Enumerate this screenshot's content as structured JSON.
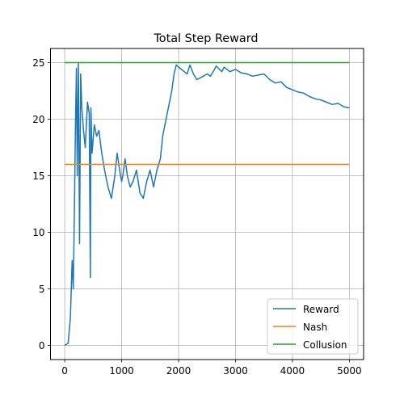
{
  "chart_data": {
    "type": "line",
    "title": "Total Step Reward",
    "xlabel": "",
    "ylabel": "",
    "xlim": [
      -250,
      5250
    ],
    "ylim": [
      -1.25,
      26.25
    ],
    "xticks": [
      0,
      1000,
      2000,
      3000,
      4000,
      5000
    ],
    "yticks": [
      0,
      5,
      10,
      15,
      20,
      25
    ],
    "grid": true,
    "legend_position": "lower-right",
    "series": [
      {
        "name": "Reward",
        "color": "#1f77b4",
        "x": [
          0,
          60,
          100,
          130,
          150,
          170,
          190,
          205,
          220,
          240,
          260,
          280,
          300,
          330,
          360,
          400,
          430,
          450,
          460,
          480,
          520,
          560,
          600,
          650,
          700,
          760,
          820,
          880,
          920,
          950,
          980,
          1000,
          1020,
          1060,
          1100,
          1150,
          1200,
          1260,
          1320,
          1380,
          1440,
          1500,
          1560,
          1620,
          1680,
          1720,
          1780,
          1840,
          1880,
          1920,
          1960,
          2000,
          2050,
          2100,
          2150,
          2200,
          2260,
          2320,
          2400,
          2500,
          2560,
          2620,
          2660,
          2700,
          2760,
          2800,
          2900,
          3000,
          3100,
          3200,
          3300,
          3400,
          3500,
          3600,
          3700,
          3800,
          3900,
          4000,
          4100,
          4200,
          4300,
          4400,
          4500,
          4600,
          4700,
          4800,
          4900,
          5000
        ],
        "values": [
          0,
          0.2,
          2.5,
          7.5,
          5.0,
          12.0,
          20.0,
          24.5,
          15.0,
          25.0,
          9.0,
          24.0,
          21.0,
          19.0,
          17.5,
          21.5,
          20.5,
          6.0,
          21.0,
          17.0,
          19.5,
          18.5,
          19.0,
          17.0,
          15.5,
          14.0,
          13.0,
          15.0,
          17.0,
          16.0,
          15.0,
          14.5,
          15.0,
          16.5,
          15.0,
          14.0,
          14.5,
          15.5,
          13.5,
          13.0,
          14.5,
          15.5,
          14.0,
          15.5,
          16.5,
          18.5,
          20.0,
          21.5,
          22.5,
          24.0,
          24.8,
          24.6,
          24.4,
          24.2,
          24.0,
          24.8,
          24.0,
          23.5,
          23.7,
          24.0,
          23.8,
          24.3,
          24.7,
          24.5,
          24.2,
          24.6,
          24.2,
          24.4,
          24.1,
          24.0,
          23.8,
          23.9,
          24.0,
          23.5,
          23.2,
          23.3,
          22.8,
          22.6,
          22.4,
          22.3,
          22.0,
          21.8,
          21.7,
          21.5,
          21.3,
          21.4,
          21.1,
          21.0
        ]
      },
      {
        "name": "Nash",
        "color": "#ff7f0e",
        "x": [
          0,
          5000
        ],
        "values": [
          16,
          16
        ]
      },
      {
        "name": "Collusion",
        "color": "#2ca02c",
        "x": [
          0,
          5000
        ],
        "values": [
          25,
          25
        ]
      }
    ]
  }
}
